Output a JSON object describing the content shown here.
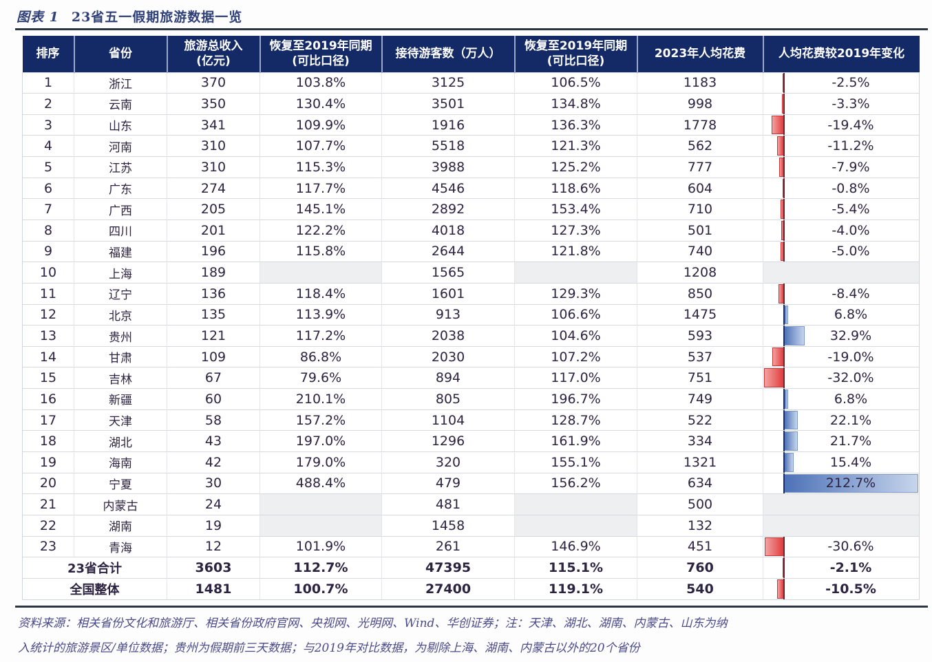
{
  "figure": {
    "number": "图表 1",
    "title": "23省五一假期旅游数据一览"
  },
  "table": {
    "columns": [
      "排序",
      "省份",
      "旅游总收入\n(亿元)",
      "恢复至2019年同期\n(可比口径)",
      "接待游客数（万人）",
      "恢复至2019年同期\n(可比口径)",
      "2023年人均花费",
      "人均花费较2019年变化"
    ],
    "rows": [
      {
        "rank": "1",
        "province": "浙江",
        "revenue": "370",
        "revenue_recovery": "103.8%",
        "visitors": "3125",
        "visitor_recovery": "106.5%",
        "spend": "1183",
        "spend_change": "-2.5%"
      },
      {
        "rank": "2",
        "province": "云南",
        "revenue": "350",
        "revenue_recovery": "130.4%",
        "visitors": "3501",
        "visitor_recovery": "134.8%",
        "spend": "998",
        "spend_change": "-3.3%"
      },
      {
        "rank": "3",
        "province": "山东",
        "revenue": "341",
        "revenue_recovery": "109.9%",
        "visitors": "1916",
        "visitor_recovery": "136.3%",
        "spend": "1778",
        "spend_change": "-19.4%"
      },
      {
        "rank": "4",
        "province": "河南",
        "revenue": "310",
        "revenue_recovery": "107.7%",
        "visitors": "5518",
        "visitor_recovery": "121.3%",
        "spend": "562",
        "spend_change": "-11.2%"
      },
      {
        "rank": "5",
        "province": "江苏",
        "revenue": "310",
        "revenue_recovery": "115.3%",
        "visitors": "3988",
        "visitor_recovery": "125.2%",
        "spend": "777",
        "spend_change": "-7.9%"
      },
      {
        "rank": "6",
        "province": "广东",
        "revenue": "274",
        "revenue_recovery": "117.7%",
        "visitors": "4546",
        "visitor_recovery": "118.6%",
        "spend": "604",
        "spend_change": "-0.8%"
      },
      {
        "rank": "7",
        "province": "广西",
        "revenue": "205",
        "revenue_recovery": "145.1%",
        "visitors": "2892",
        "visitor_recovery": "153.4%",
        "spend": "710",
        "spend_change": "-5.4%"
      },
      {
        "rank": "8",
        "province": "四川",
        "revenue": "201",
        "revenue_recovery": "122.2%",
        "visitors": "4018",
        "visitor_recovery": "127.3%",
        "spend": "501",
        "spend_change": "-4.0%"
      },
      {
        "rank": "9",
        "province": "福建",
        "revenue": "196",
        "revenue_recovery": "115.8%",
        "visitors": "2644",
        "visitor_recovery": "121.8%",
        "spend": "740",
        "spend_change": "-5.0%"
      },
      {
        "rank": "10",
        "province": "上海",
        "revenue": "189",
        "revenue_recovery": "",
        "visitors": "1565",
        "visitor_recovery": "",
        "spend": "1208",
        "spend_change": ""
      },
      {
        "rank": "11",
        "province": "辽宁",
        "revenue": "136",
        "revenue_recovery": "118.4%",
        "visitors": "1601",
        "visitor_recovery": "129.3%",
        "spend": "850",
        "spend_change": "-8.4%"
      },
      {
        "rank": "12",
        "province": "北京",
        "revenue": "135",
        "revenue_recovery": "113.9%",
        "visitors": "913",
        "visitor_recovery": "106.6%",
        "spend": "1475",
        "spend_change": "6.8%"
      },
      {
        "rank": "13",
        "province": "贵州",
        "revenue": "121",
        "revenue_recovery": "117.2%",
        "visitors": "2038",
        "visitor_recovery": "104.6%",
        "spend": "593",
        "spend_change": "32.9%"
      },
      {
        "rank": "14",
        "province": "甘肃",
        "revenue": "109",
        "revenue_recovery": "86.8%",
        "visitors": "2030",
        "visitor_recovery": "107.2%",
        "spend": "537",
        "spend_change": "-19.0%"
      },
      {
        "rank": "15",
        "province": "吉林",
        "revenue": "67",
        "revenue_recovery": "79.6%",
        "visitors": "894",
        "visitor_recovery": "117.0%",
        "spend": "751",
        "spend_change": "-32.0%"
      },
      {
        "rank": "16",
        "province": "新疆",
        "revenue": "60",
        "revenue_recovery": "210.1%",
        "visitors": "805",
        "visitor_recovery": "196.7%",
        "spend": "749",
        "spend_change": "6.8%"
      },
      {
        "rank": "17",
        "province": "天津",
        "revenue": "58",
        "revenue_recovery": "157.2%",
        "visitors": "1104",
        "visitor_recovery": "128.7%",
        "spend": "522",
        "spend_change": "22.1%"
      },
      {
        "rank": "18",
        "province": "湖北",
        "revenue": "43",
        "revenue_recovery": "197.0%",
        "visitors": "1296",
        "visitor_recovery": "161.9%",
        "spend": "334",
        "spend_change": "21.7%"
      },
      {
        "rank": "19",
        "province": "海南",
        "revenue": "42",
        "revenue_recovery": "179.0%",
        "visitors": "320",
        "visitor_recovery": "155.1%",
        "spend": "1321",
        "spend_change": "15.4%"
      },
      {
        "rank": "20",
        "province": "宁夏",
        "revenue": "30",
        "revenue_recovery": "488.4%",
        "visitors": "479",
        "visitor_recovery": "156.2%",
        "spend": "634",
        "spend_change": "212.7%"
      },
      {
        "rank": "21",
        "province": "内蒙古",
        "revenue": "24",
        "revenue_recovery": "",
        "visitors": "481",
        "visitor_recovery": "",
        "spend": "500",
        "spend_change": ""
      },
      {
        "rank": "22",
        "province": "湖南",
        "revenue": "19",
        "revenue_recovery": "",
        "visitors": "1458",
        "visitor_recovery": "",
        "spend": "132",
        "spend_change": ""
      },
      {
        "rank": "23",
        "province": "青海",
        "revenue": "12",
        "revenue_recovery": "101.9%",
        "visitors": "261",
        "visitor_recovery": "146.9%",
        "spend": "451",
        "spend_change": "-30.6%"
      }
    ],
    "totals": [
      {
        "label": "23省合计",
        "revenue": "3603",
        "revenue_recovery": "112.7%",
        "visitors": "47395",
        "visitor_recovery": "115.1%",
        "spend": "760",
        "spend_change": "-2.1%"
      },
      {
        "label": "全国整体",
        "revenue": "1481",
        "revenue_recovery": "100.7%",
        "visitors": "27400",
        "visitor_recovery": "119.1%",
        "spend": "540",
        "spend_change": "-10.5%"
      }
    ]
  },
  "colors": {
    "header_bg": "#142a66",
    "negative_bar": "#e23c3c",
    "positive_bar": "#4d72b8",
    "empty_cell": "#eeeff1"
  },
  "notes": {
    "line1": "资料来源：相关省份文化和旅游厅、相关省份政府官网、央视网、光明网、Wind、华创证券；注：天津、湖北、湖南、内蒙古、山东为纳",
    "line2": "入统计的旅游景区/单位数据；贵州为假期前三天数据；与2019年对比数据，为剔除上海、湖南、内蒙古以外的20个省份"
  }
}
